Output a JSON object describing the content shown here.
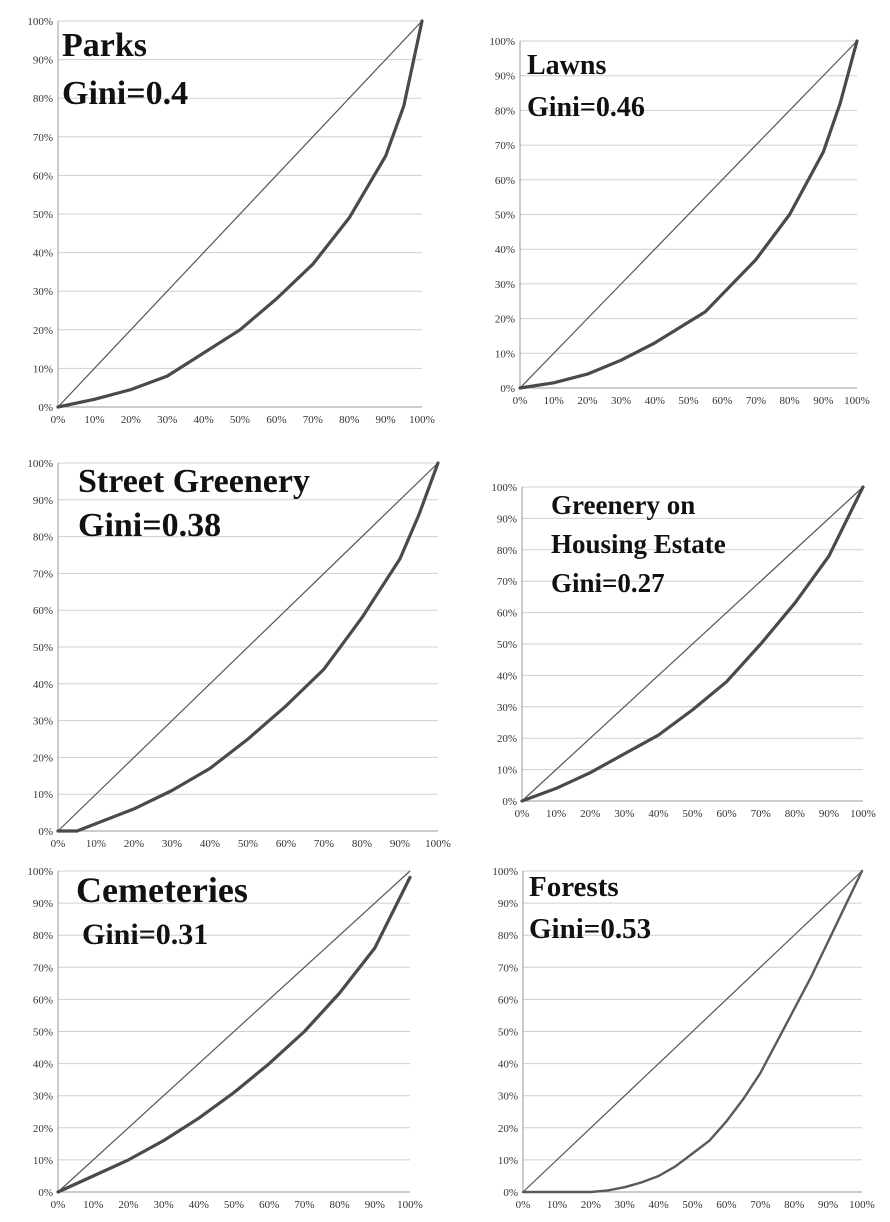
{
  "chart_data": [
    {
      "type": "line",
      "title": "Parks",
      "subtitle": "Gini=0.4",
      "xlim": [
        0,
        100
      ],
      "ylim": [
        0,
        100
      ],
      "x_ticks": [
        "0%",
        "10%",
        "20%",
        "30%",
        "40%",
        "50%",
        "60%",
        "70%",
        "80%",
        "90%",
        "100%"
      ],
      "y_ticks": [
        "0%",
        "10%",
        "20%",
        "30%",
        "40%",
        "50%",
        "60%",
        "70%",
        "80%",
        "90%",
        "100%"
      ],
      "grid": "horizontal",
      "series": [
        {
          "x": [
            0,
            100
          ],
          "y": [
            0,
            100
          ]
        },
        {
          "x": [
            0,
            10,
            20,
            30,
            40,
            50,
            60,
            70,
            80,
            90,
            95,
            100
          ],
          "y": [
            0,
            2,
            4.5,
            8,
            14,
            20,
            28,
            37,
            49,
            65,
            78,
            100
          ]
        }
      ]
    },
    {
      "type": "line",
      "title": "Lawns",
      "subtitle": "Gini=0.46",
      "xlim": [
        0,
        100
      ],
      "ylim": [
        0,
        100
      ],
      "x_ticks": [
        "0%",
        "10%",
        "20%",
        "30%",
        "40%",
        "50%",
        "60%",
        "70%",
        "80%",
        "90%",
        "100%"
      ],
      "y_ticks": [
        "0%",
        "10%",
        "20%",
        "30%",
        "40%",
        "50%",
        "60%",
        "70%",
        "80%",
        "90%",
        "100%"
      ],
      "grid": "horizontal",
      "series": [
        {
          "x": [
            0,
            100
          ],
          "y": [
            0,
            100
          ]
        },
        {
          "x": [
            0,
            10,
            20,
            30,
            40,
            50,
            55,
            60,
            70,
            80,
            90,
            95,
            100
          ],
          "y": [
            0,
            1.5,
            4,
            8,
            13,
            19,
            22,
            27,
            37,
            50,
            68,
            82,
            100
          ]
        }
      ]
    },
    {
      "type": "line",
      "title": "Street Greenery",
      "subtitle": "Gini=0.38",
      "xlim": [
        0,
        100
      ],
      "ylim": [
        0,
        100
      ],
      "x_ticks": [
        "0%",
        "10%",
        "20%",
        "30%",
        "40%",
        "50%",
        "60%",
        "70%",
        "80%",
        "90%",
        "100%"
      ],
      "y_ticks": [
        "0%",
        "10%",
        "20%",
        "30%",
        "40%",
        "50%",
        "60%",
        "70%",
        "80%",
        "90%",
        "100%"
      ],
      "grid": "horizontal",
      "series": [
        {
          "x": [
            0,
            100
          ],
          "y": [
            0,
            100
          ]
        },
        {
          "x": [
            0,
            5,
            10,
            20,
            30,
            40,
            50,
            60,
            70,
            80,
            90,
            95,
            100
          ],
          "y": [
            0,
            0,
            2,
            6,
            11,
            17,
            25,
            34,
            44,
            58,
            74,
            86,
            100
          ]
        }
      ]
    },
    {
      "type": "line",
      "title": "Greenery on",
      "title_line2": "Housing Estate",
      "subtitle": "Gini=0.27",
      "xlim": [
        0,
        100
      ],
      "ylim": [
        0,
        100
      ],
      "x_ticks": [
        "0%",
        "10%",
        "20%",
        "30%",
        "40%",
        "50%",
        "60%",
        "70%",
        "80%",
        "90%",
        "100%"
      ],
      "y_ticks": [
        "0%",
        "10%",
        "20%",
        "30%",
        "40%",
        "50%",
        "60%",
        "70%",
        "80%",
        "90%",
        "100%"
      ],
      "grid": "horizontal",
      "series": [
        {
          "x": [
            0,
            100
          ],
          "y": [
            0,
            100
          ]
        },
        {
          "x": [
            0,
            10,
            20,
            30,
            40,
            50,
            60,
            70,
            80,
            90,
            100
          ],
          "y": [
            0,
            4,
            9,
            15,
            21,
            29,
            38,
            50,
            63,
            78,
            100
          ]
        }
      ]
    },
    {
      "type": "line",
      "title": "Cemeteries",
      "subtitle": "Gini=0.31",
      "xlim": [
        0,
        100
      ],
      "ylim": [
        0,
        100
      ],
      "x_ticks": [
        "0%",
        "10%",
        "20%",
        "30%",
        "40%",
        "50%",
        "60%",
        "70%",
        "80%",
        "90%",
        "100%"
      ],
      "y_ticks": [
        "0%",
        "10%",
        "20%",
        "30%",
        "40%",
        "50%",
        "60%",
        "70%",
        "80%",
        "90%",
        "100%"
      ],
      "grid": "horizontal",
      "series": [
        {
          "x": [
            0,
            100
          ],
          "y": [
            0,
            100
          ]
        },
        {
          "x": [
            0,
            10,
            20,
            30,
            40,
            50,
            60,
            70,
            80,
            90,
            100
          ],
          "y": [
            0,
            5,
            10,
            16,
            23,
            31,
            40,
            50,
            62,
            76,
            98
          ]
        }
      ]
    },
    {
      "type": "line",
      "title": "Forests",
      "subtitle": "Gini=0.53",
      "xlim": [
        0,
        100
      ],
      "ylim": [
        0,
        100
      ],
      "x_ticks": [
        "0%",
        "10%",
        "20%",
        "30%",
        "40%",
        "50%",
        "60%",
        "70%",
        "80%",
        "90%",
        "100%"
      ],
      "y_ticks": [
        "0%",
        "10%",
        "20%",
        "30%",
        "40%",
        "50%",
        "60%",
        "70%",
        "80%",
        "90%",
        "100%"
      ],
      "grid": "horizontal",
      "series": [
        {
          "x": [
            0,
            100
          ],
          "y": [
            0,
            100
          ]
        },
        {
          "x": [
            0,
            10,
            20,
            25,
            30,
            35,
            40,
            45,
            50,
            55,
            60,
            65,
            70,
            75,
            80,
            85,
            90,
            95,
            100
          ],
          "y": [
            0,
            0,
            0,
            0.5,
            1.5,
            3,
            5,
            8,
            12,
            16,
            22,
            29,
            37,
            47,
            57,
            67,
            78,
            89,
            100
          ]
        }
      ]
    }
  ]
}
